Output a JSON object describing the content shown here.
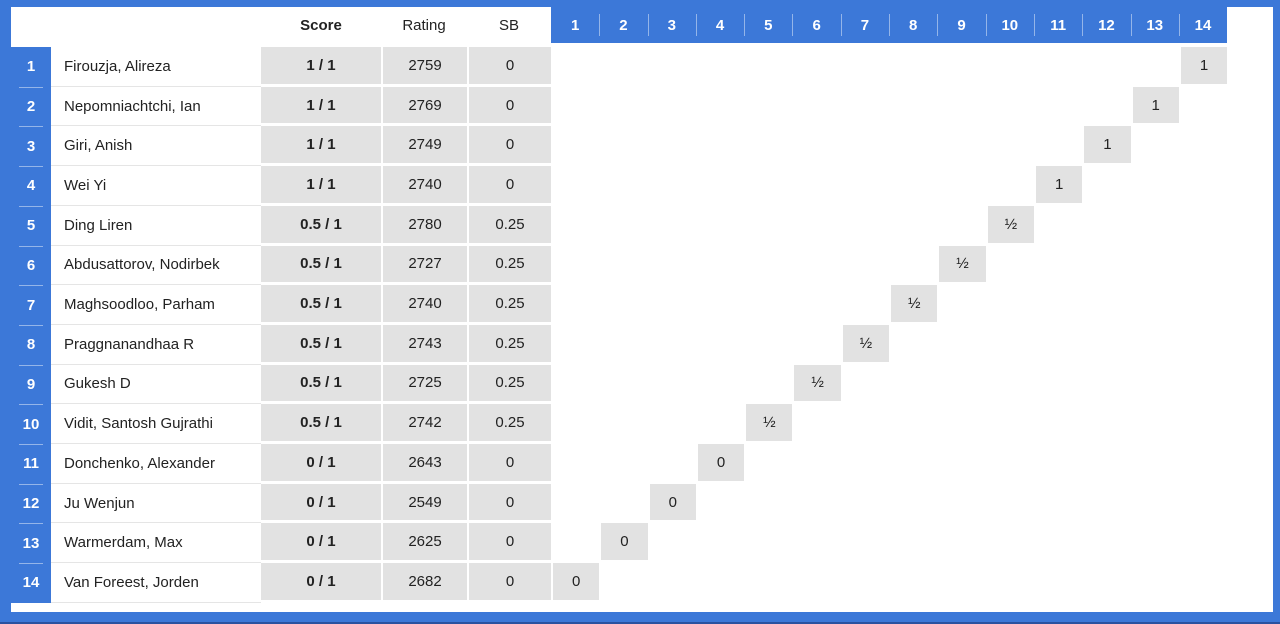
{
  "header": {
    "score": "Score",
    "rating": "Rating",
    "sb": "SB"
  },
  "rounds": [
    "1",
    "2",
    "3",
    "4",
    "5",
    "6",
    "7",
    "8",
    "9",
    "10",
    "11",
    "12",
    "13",
    "14"
  ],
  "players": [
    {
      "rank": "1",
      "name": "Firouzja, Alireza",
      "score": "1 / 1",
      "rating": "2759",
      "sb": "0",
      "result": {
        "col": 14,
        "value": "1"
      }
    },
    {
      "rank": "2",
      "name": "Nepomniachtchi, Ian",
      "score": "1 / 1",
      "rating": "2769",
      "sb": "0",
      "result": {
        "col": 13,
        "value": "1"
      }
    },
    {
      "rank": "3",
      "name": "Giri, Anish",
      "score": "1 / 1",
      "rating": "2749",
      "sb": "0",
      "result": {
        "col": 12,
        "value": "1"
      }
    },
    {
      "rank": "4",
      "name": "Wei Yi",
      "score": "1 / 1",
      "rating": "2740",
      "sb": "0",
      "result": {
        "col": 11,
        "value": "1"
      }
    },
    {
      "rank": "5",
      "name": "Ding Liren",
      "score": "0.5 / 1",
      "rating": "2780",
      "sb": "0.25",
      "result": {
        "col": 10,
        "value": "½"
      }
    },
    {
      "rank": "6",
      "name": "Abdusattorov, Nodirbek",
      "score": "0.5 / 1",
      "rating": "2727",
      "sb": "0.25",
      "result": {
        "col": 9,
        "value": "½"
      }
    },
    {
      "rank": "7",
      "name": "Maghsoodloo, Parham",
      "score": "0.5 / 1",
      "rating": "2740",
      "sb": "0.25",
      "result": {
        "col": 8,
        "value": "½"
      }
    },
    {
      "rank": "8",
      "name": "Praggnanandhaa R",
      "score": "0.5 / 1",
      "rating": "2743",
      "sb": "0.25",
      "result": {
        "col": 7,
        "value": "½"
      }
    },
    {
      "rank": "9",
      "name": "Gukesh D",
      "score": "0.5 / 1",
      "rating": "2725",
      "sb": "0.25",
      "result": {
        "col": 6,
        "value": "½"
      }
    },
    {
      "rank": "10",
      "name": "Vidit, Santosh Gujrathi",
      "score": "0.5 / 1",
      "rating": "2742",
      "sb": "0.25",
      "result": {
        "col": 5,
        "value": "½"
      }
    },
    {
      "rank": "11",
      "name": "Donchenko, Alexander",
      "score": "0 / 1",
      "rating": "2643",
      "sb": "0",
      "result": {
        "col": 4,
        "value": "0"
      }
    },
    {
      "rank": "12",
      "name": "Ju Wenjun",
      "score": "0 / 1",
      "rating": "2549",
      "sb": "0",
      "result": {
        "col": 3,
        "value": "0"
      }
    },
    {
      "rank": "13",
      "name": "Warmerdam, Max",
      "score": "0 / 1",
      "rating": "2625",
      "sb": "0",
      "result": {
        "col": 2,
        "value": "0"
      }
    },
    {
      "rank": "14",
      "name": "Van Foreest, Jorden",
      "score": "0 / 1",
      "rating": "2682",
      "sb": "0",
      "result": {
        "col": 1,
        "value": "0"
      }
    }
  ],
  "colors": {
    "accent_blue": "#3c78d8",
    "cell_gray": "#e2e2e2",
    "text": "#222222"
  }
}
